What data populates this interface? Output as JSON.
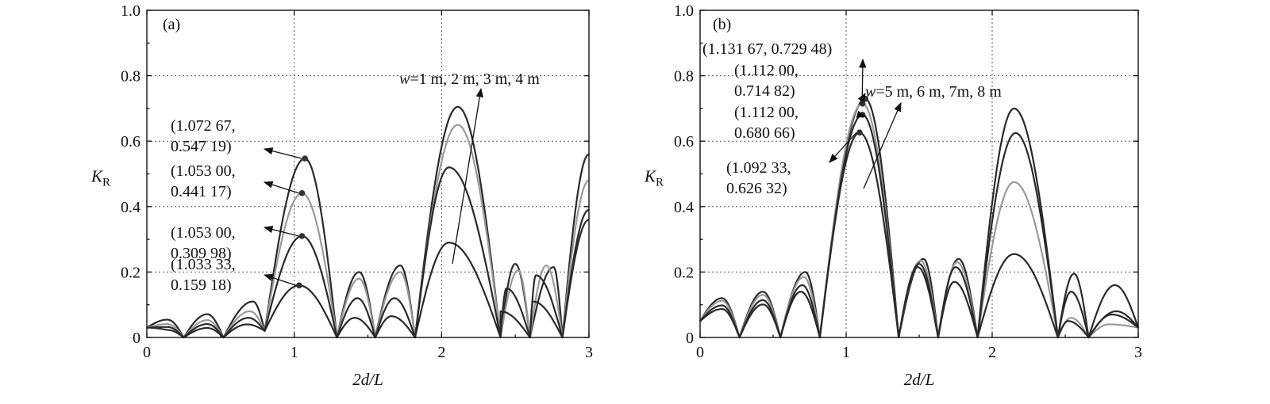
{
  "chart_data": [
    {
      "panel": "(a)",
      "type": "line",
      "xlabel": "2d/L",
      "ylabel": "K",
      "ylabel_sub": "R",
      "xlim": [
        0,
        3
      ],
      "ylim": [
        0,
        1.0
      ],
      "xticks": [
        0,
        1,
        2,
        3
      ],
      "yticks": [
        "0",
        "0.2",
        "0.4",
        "0.6",
        "0.8",
        "1.0"
      ],
      "grid": true,
      "note_w": "w",
      "note_rest": "=1 m, 2 m, 3 m, 4 m",
      "series": [
        {
          "color": "#2a2a2a",
          "amp": 0.547,
          "peak": 1.07267,
          "sp": 2.11,
          "p2": 0.705,
          "sp3": 3.0,
          "p3": 0.56,
          "sm": 0.72,
          "pm": 0.11,
          "sr": 1.44,
          "pr": 0.2,
          "sr2": 1.72,
          "pr2": 0.22,
          "sr3": 2.5,
          "pr3": 0.225,
          "sr4": 2.76,
          "pr4": 0.215
        },
        {
          "color": "#9a9a9a",
          "amp": 0.441,
          "peak": 1.053,
          "sp": 2.11,
          "p2": 0.65,
          "sp3": 3.0,
          "p3": 0.48,
          "sm": 0.7,
          "pm": 0.08,
          "sr": 1.44,
          "pr": 0.18,
          "sr2": 1.72,
          "pr2": 0.2,
          "sr3": 2.52,
          "pr3": 0.205,
          "sr4": 2.71,
          "pr4": 0.22
        },
        {
          "color": "#2a2a2a",
          "amp": 0.31,
          "peak": 1.053,
          "sp": 2.05,
          "p2": 0.52,
          "sp3": 3.0,
          "p3": 0.39,
          "sm": 0.69,
          "pm": 0.06,
          "sr": 1.43,
          "pr": 0.12,
          "sr2": 1.68,
          "pr2": 0.12,
          "sr3": 2.44,
          "pr3": 0.15,
          "sr4": 2.64,
          "pr4": 0.19
        },
        {
          "color": "#2a2a2a",
          "amp": 0.159,
          "peak": 1.03333,
          "sp": 2.05,
          "p2": 0.29,
          "sp3": 3.0,
          "p3": 0.36,
          "sm": 0.68,
          "pm": 0.04,
          "sr": 1.41,
          "pr": 0.06,
          "sr2": 1.66,
          "pr2": 0.065,
          "sr3": 2.4,
          "pr3": 0.08,
          "sr4": 2.62,
          "pr4": 0.11
        }
      ],
      "peaks": [
        {
          "x": 1.07267,
          "y": 0.54719,
          "line1": "(1.072 67,",
          "line2": "0.547 19)"
        },
        {
          "x": 1.053,
          "y": 0.44117,
          "line1": "(1.053 00,",
          "line2": "0.441 17)"
        },
        {
          "x": 1.053,
          "y": 0.30998,
          "line1": "(1.053 00,",
          "line2": "0.309 98)"
        },
        {
          "x": 1.03333,
          "y": 0.15918,
          "line1": "(1.033 33,",
          "line2": "0.159 18)"
        }
      ]
    },
    {
      "panel": "(b)",
      "type": "line",
      "xlabel": "2d/L",
      "ylabel": "K",
      "ylabel_sub": "R",
      "xlim": [
        0,
        3
      ],
      "ylim": [
        0,
        1.0
      ],
      "xticks": [
        0,
        1,
        2,
        3
      ],
      "yticks": [
        "0",
        "0.2",
        "0.4",
        "0.6",
        "0.8",
        "1.0"
      ],
      "grid": true,
      "note_w": "w",
      "note_rest": "=5 m, 6 m, 7m, 8 m",
      "series": [
        {
          "color": "#2a2a2a",
          "amp": 0.729,
          "peak": 1.13167,
          "sp": 2.15,
          "p2": 0.7,
          "sm": 0.72,
          "pm": 0.2,
          "sr": 1.53,
          "pr": 0.24,
          "sr2": 1.77,
          "pr2": 0.24,
          "sr3": 2.56,
          "pr3": 0.195,
          "sr4": 2.84,
          "pr4": 0.16
        },
        {
          "color": "#9a9a9a",
          "amp": 0.715,
          "peak": 1.112,
          "sp": 2.15,
          "p2": 0.475,
          "sm": 0.71,
          "pm": 0.185,
          "sr": 1.51,
          "pr": 0.235,
          "sr2": 1.76,
          "pr2": 0.23,
          "sr3": 2.54,
          "pr3": 0.06,
          "sr4": 2.8,
          "pr4": 0.04
        },
        {
          "color": "#2a2a2a",
          "amp": 0.681,
          "peak": 1.112,
          "sp": 2.16,
          "p2": 0.625,
          "sm": 0.7,
          "pm": 0.16,
          "sr": 1.5,
          "pr": 0.225,
          "sr2": 1.75,
          "pr2": 0.215,
          "sr3": 2.54,
          "pr3": 0.14,
          "sr4": 2.85,
          "pr4": 0.08
        },
        {
          "color": "#2a2a2a",
          "amp": 0.626,
          "peak": 1.09233,
          "sp": 2.15,
          "p2": 0.255,
          "sm": 0.69,
          "pm": 0.14,
          "sr": 1.49,
          "pr": 0.215,
          "sr2": 1.74,
          "pr2": 0.17,
          "sr3": 2.52,
          "pr3": 0.05,
          "sr4": 2.82,
          "pr4": 0.07
        }
      ],
      "peaks": [
        {
          "x": 1.13167,
          "y": 0.72948,
          "line1": "(1.131 67, 0.729 48)",
          "line2": ""
        },
        {
          "x": 1.112,
          "y": 0.71482,
          "line1": "(1.112 00,",
          "line2": "0.714 82)"
        },
        {
          "x": 1.112,
          "y": 0.68066,
          "line1": "(1.112 00,",
          "line2": "0.680 66)"
        },
        {
          "x": 1.09233,
          "y": 0.62632,
          "line1": "(1.092 33,",
          "line2": "0.626 32)"
        }
      ]
    }
  ]
}
